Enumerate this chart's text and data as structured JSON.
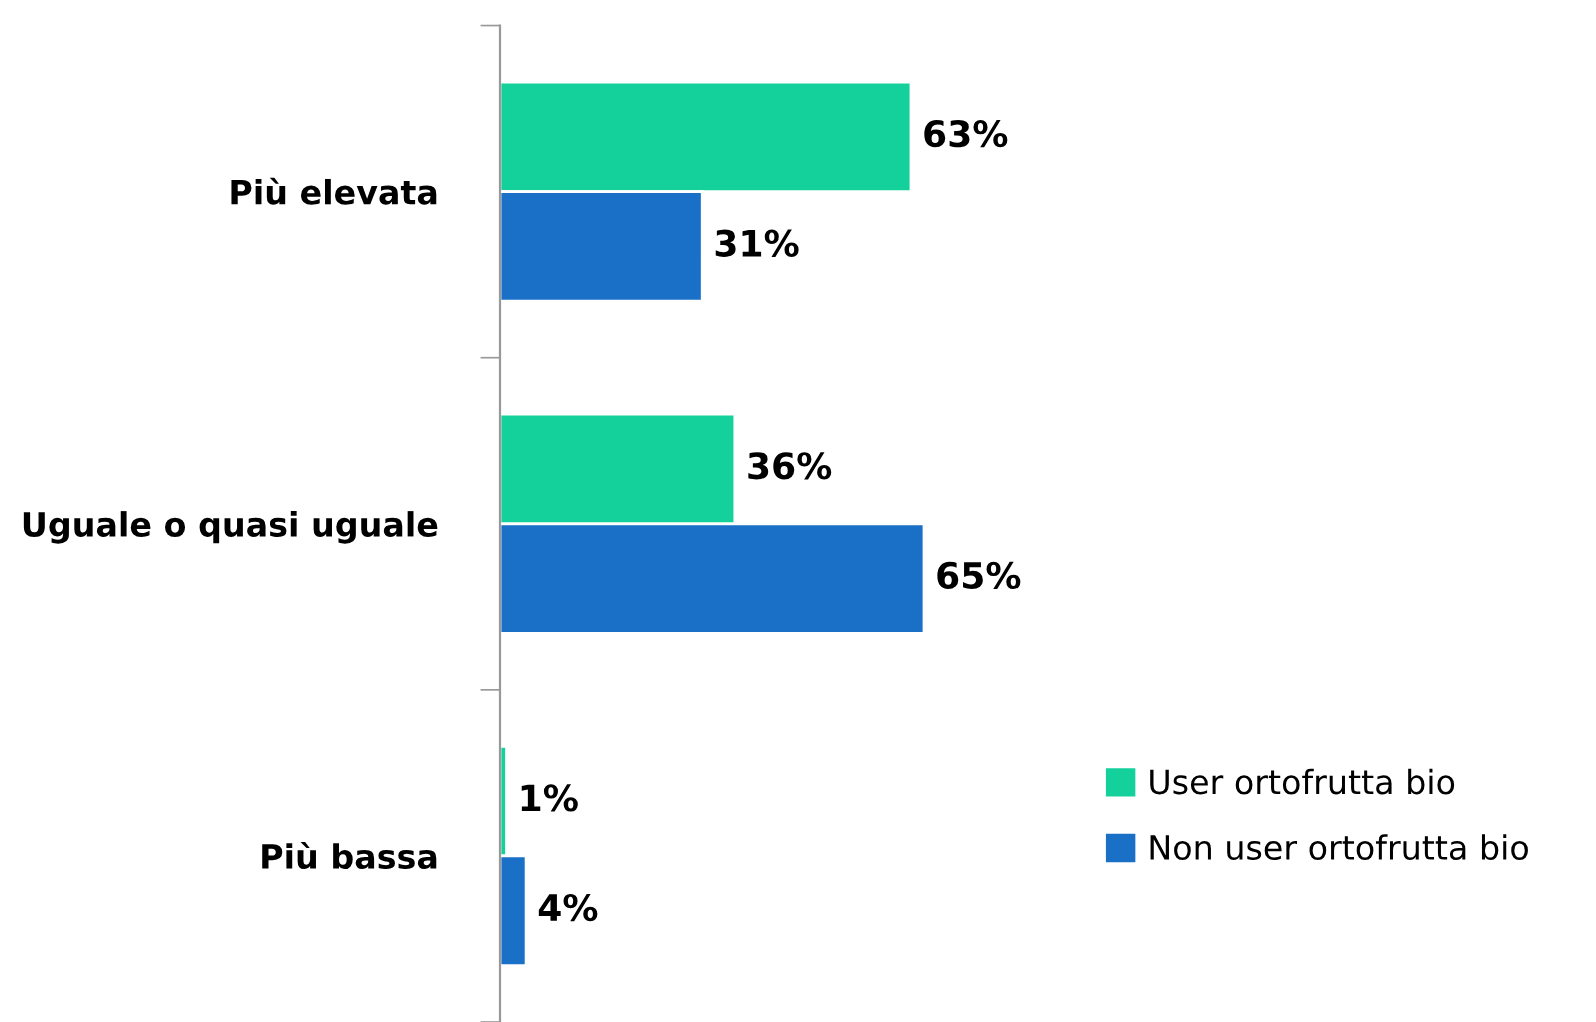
{
  "chart_data": {
    "type": "bar",
    "orientation": "horizontal",
    "categories": [
      "Più elevata",
      "Uguale o quasi uguale",
      "Più bassa"
    ],
    "series": [
      {
        "name": "User ortofrutta bio",
        "color": "#14d19b",
        "values": [
          63,
          36,
          1
        ],
        "value_labels": [
          "63%",
          "36%",
          "1%"
        ]
      },
      {
        "name": "Non user ortofrutta bio",
        "color": "#1a6fc6",
        "values": [
          31,
          65,
          4
        ],
        "value_labels": [
          "31%",
          "65%",
          "4%"
        ]
      }
    ],
    "legend": "right",
    "grid": false
  }
}
